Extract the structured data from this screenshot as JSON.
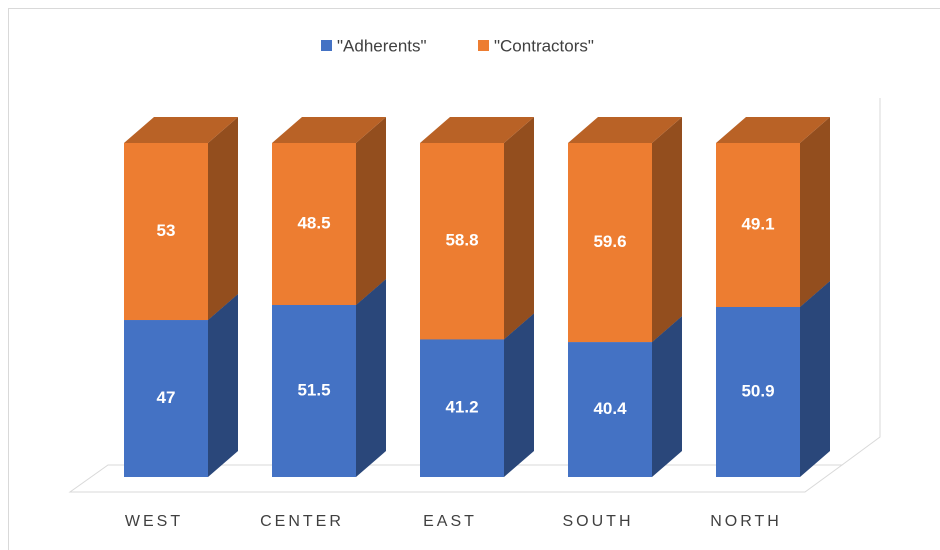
{
  "chart_data": {
    "type": "bar3d_stacked",
    "categories": [
      "WEST",
      "CENTER",
      "EAST",
      "SOUTH",
      "NORTH"
    ],
    "series": [
      {
        "name": "\"Adherents\"",
        "color": "#4472c4",
        "values": [
          47,
          51.5,
          41.2,
          40.4,
          50.9
        ]
      },
      {
        "name": "\"Contractors\"",
        "color": "#ed7d31",
        "values": [
          53,
          48.5,
          58.8,
          59.6,
          49.1
        ]
      }
    ],
    "ylim": [
      0,
      100
    ]
  }
}
